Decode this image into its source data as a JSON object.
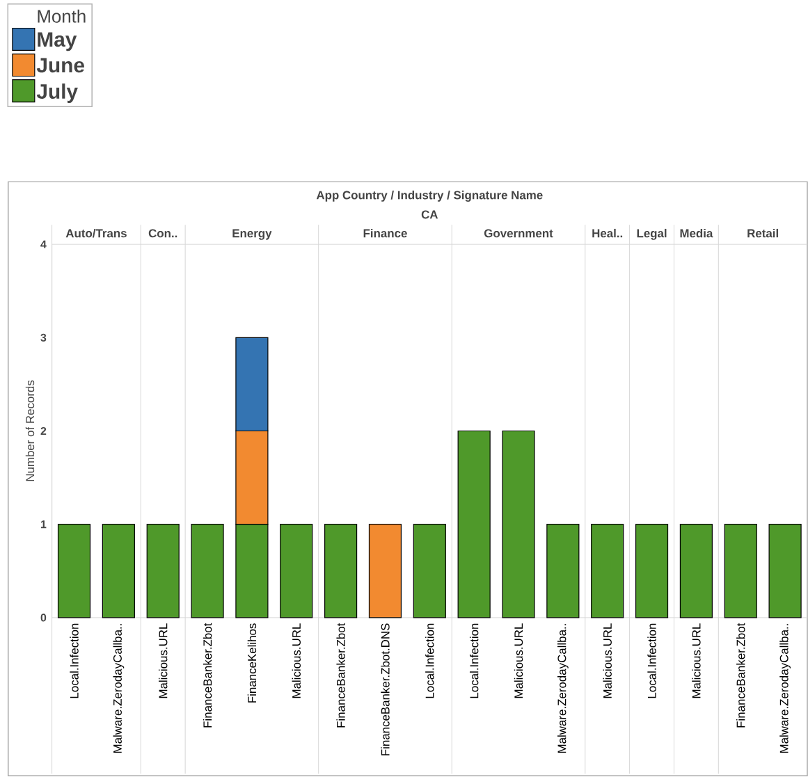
{
  "chart_data": {
    "type": "bar",
    "stacked": true,
    "title": "App Country  /  Industry  /  Signature Name",
    "subtitle": "CA",
    "ylabel": "Number of Records",
    "legend_title": "Month",
    "legend": "top left",
    "categories": [
      "Local.Infection",
      "Malware.ZerodayCallba..",
      "Malicious.URL",
      "FinanceBanker.Zbot",
      "FinanceKelihos",
      "Malicious.URL",
      "FinanceBanker.Zbot",
      "FinanceBanker.Zbot.DNS",
      "Local.Infection",
      "Local.Infection",
      "Malicious.URL",
      "Malware.ZerodayCallba..",
      "Malicious.URL",
      "Local.Infection",
      "Malicious.URL",
      "FinanceBanker.Zbot",
      "Malware.ZerodayCallba.."
    ],
    "annotations": [
      "Auto/Trans",
      "Con..",
      "Energy",
      "Finance",
      "Government",
      "Heal..",
      "Legal",
      "Media",
      "Retail"
    ],
    "ylim": [
      0,
      4
    ],
    "yticks": [
      0,
      1,
      2,
      3,
      4
    ],
    "series": [
      {
        "name": "July",
        "color": "#4f992a",
        "values": [
          1,
          1,
          1,
          1,
          1,
          1,
          1,
          null,
          1,
          2,
          2,
          1,
          1,
          1,
          1,
          1,
          1
        ]
      },
      {
        "name": "June",
        "color": "#f28a30",
        "values": [
          null,
          null,
          null,
          null,
          1,
          null,
          null,
          1,
          null,
          null,
          null,
          null,
          null,
          null,
          null,
          null,
          null
        ]
      },
      {
        "name": "May",
        "color": "#3474b2",
        "values": [
          null,
          null,
          null,
          null,
          1,
          null,
          null,
          null,
          null,
          null,
          null,
          null,
          null,
          null,
          null,
          null,
          null
        ]
      }
    ]
  }
}
